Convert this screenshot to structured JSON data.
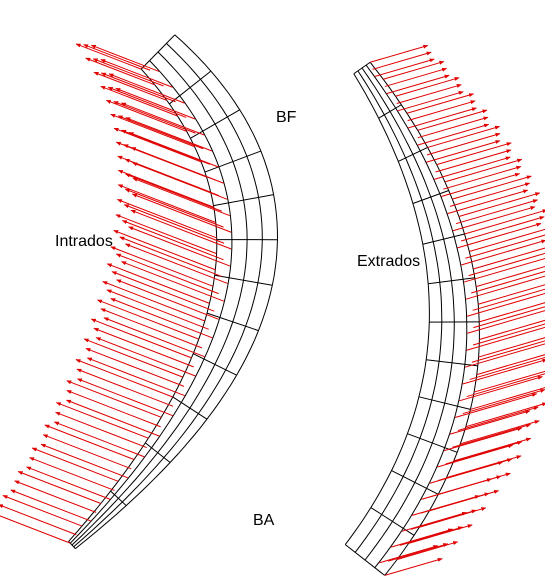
{
  "labels": {
    "bf": "BF",
    "intrados": "Intrados",
    "extrados": "Extrados",
    "ba": "BA"
  }
}
